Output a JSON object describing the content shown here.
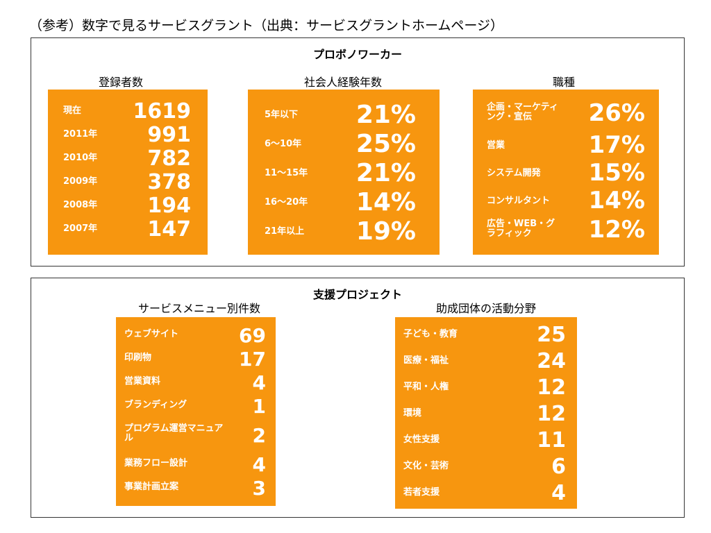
{
  "caption": "（参考）数字で見るサービスグラント（出典：サービスグラントホームページ）",
  "section1": {
    "title": "プロボノワーカー",
    "panels": [
      {
        "title": "登録者数",
        "rows": [
          {
            "label": "現在",
            "value": "1619"
          },
          {
            "label": "2011年",
            "value": "991"
          },
          {
            "label": "2010年",
            "value": "782"
          },
          {
            "label": "2009年",
            "value": "378"
          },
          {
            "label": "2008年",
            "value": "194"
          },
          {
            "label": "2007年",
            "value": "147"
          }
        ]
      },
      {
        "title": "社会人経験年数",
        "rows": [
          {
            "label": "5年以下",
            "value": "21%"
          },
          {
            "label": "6～10年",
            "value": "25%"
          },
          {
            "label": "11～15年",
            "value": "21%"
          },
          {
            "label": "16～20年",
            "value": "14%"
          },
          {
            "label": "21年以上",
            "value": "19%"
          }
        ]
      },
      {
        "title": "職種",
        "rows": [
          {
            "label": "企画・マーケティング・宣伝",
            "value": "26%"
          },
          {
            "label": "営業",
            "value": "17%"
          },
          {
            "label": "システム開発",
            "value": "15%"
          },
          {
            "label": "コンサルタント",
            "value": "14%"
          },
          {
            "label": "広告・WEB・グラフィック",
            "value": "12%"
          }
        ]
      }
    ]
  },
  "section2": {
    "title": "支援プロジェクト",
    "panels": [
      {
        "title": "サービスメニュー別件数",
        "rows": [
          {
            "label": "ウェブサイト",
            "value": "69"
          },
          {
            "label": "印刷物",
            "value": "17"
          },
          {
            "label": "営業資料",
            "value": "4"
          },
          {
            "label": "ブランディング",
            "value": "1"
          },
          {
            "label": "プログラム運営マニュアル",
            "value": "2"
          },
          {
            "label": "業務フロー設計",
            "value": "4"
          },
          {
            "label": "事業計画立案",
            "value": "3"
          }
        ]
      },
      {
        "title": "助成団体の活動分野",
        "rows": [
          {
            "label": "子ども・教育",
            "value": "25"
          },
          {
            "label": "医療・福祉",
            "value": "24"
          },
          {
            "label": "平和・人権",
            "value": "12"
          },
          {
            "label": "環境",
            "value": "12"
          },
          {
            "label": "女性支援",
            "value": "11"
          },
          {
            "label": "文化・芸術",
            "value": "6"
          },
          {
            "label": "若者支援",
            "value": "4"
          }
        ]
      }
    ]
  },
  "colors": {
    "card": "#f7960f",
    "text_on_card": "#ffffff"
  }
}
